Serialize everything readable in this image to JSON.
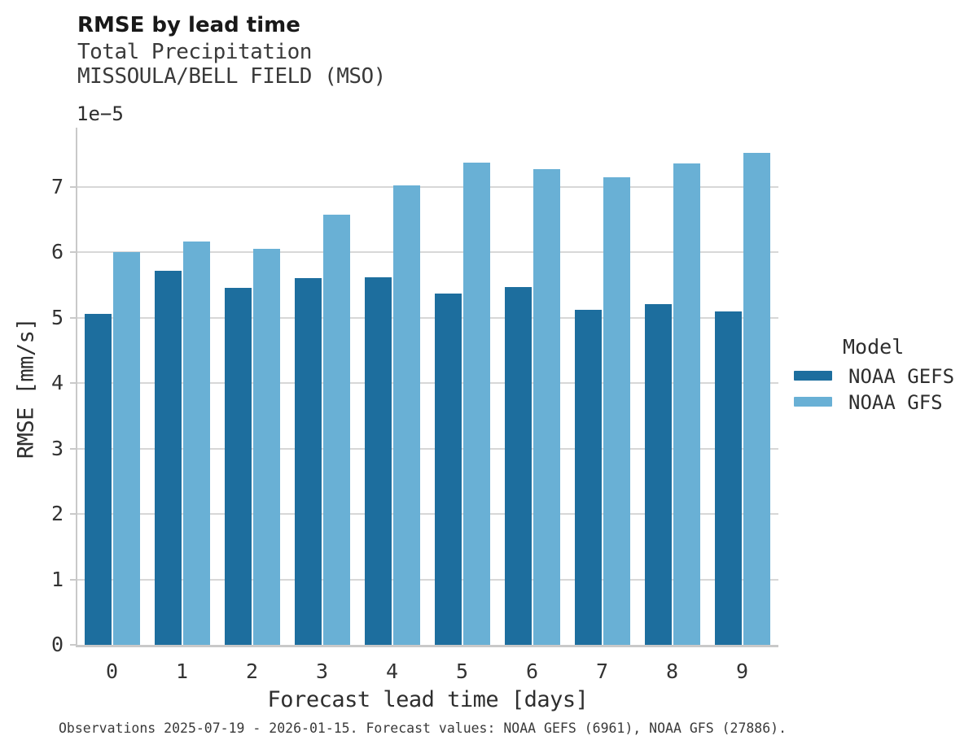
{
  "title": "RMSE by lead time",
  "subtitle_line1": "Total Precipitation",
  "subtitle_line2": "MISSOULA/BELL FIELD (MSO)",
  "offset_label": "1e−5",
  "xlabel": "Forecast lead time [days]",
  "ylabel": "RMSE [mm/s]",
  "caption": "Observations 2025-07-19 - 2026-01-15. Forecast values: NOAA GEFS (6961), NOAA GFS (27886).",
  "legend": {
    "title": "Model",
    "entries": [
      {
        "label": "NOAA GEFS",
        "color": "#1d6e9e"
      },
      {
        "label": "NOAA GFS",
        "color": "#69b0d5"
      }
    ]
  },
  "colors": {
    "gefs_bar": "#1d6e9e",
    "gfs_bar": "#69b0d5",
    "gridline": "#d7d7d7",
    "spine": "#c9c9c9",
    "text": "#2e2e2e"
  },
  "chart_data": {
    "type": "bar",
    "title": "RMSE by lead time",
    "subtitle": [
      "Total Precipitation",
      "MISSOULA/BELL FIELD (MSO)"
    ],
    "xlabel": "Forecast lead time [days]",
    "ylabel": "RMSE [mm/s]",
    "value_offset_label": "1e−5",
    "value_units_multiplier": "1e-5",
    "categories": [
      "0",
      "1",
      "2",
      "3",
      "4",
      "5",
      "6",
      "7",
      "8",
      "9"
    ],
    "series": [
      {
        "name": "NOAA GEFS",
        "color": "#1d6e9e",
        "values": [
          5.05,
          5.72,
          5.45,
          5.6,
          5.61,
          5.37,
          5.46,
          5.12,
          5.2,
          5.09
        ]
      },
      {
        "name": "NOAA GFS",
        "color": "#69b0d5",
        "values": [
          6.0,
          6.16,
          6.05,
          6.57,
          7.02,
          7.37,
          7.27,
          7.14,
          7.35,
          7.51
        ]
      }
    ],
    "ylim": [
      0,
      7.9
    ],
    "yticks": [
      0,
      1,
      2,
      3,
      4,
      5,
      6,
      7
    ],
    "grid": true,
    "legend_title": "Model",
    "legend_position": "right",
    "caption": "Observations 2025-07-19 - 2026-01-15. Forecast values: NOAA GEFS (6961), NOAA GFS (27886)."
  }
}
